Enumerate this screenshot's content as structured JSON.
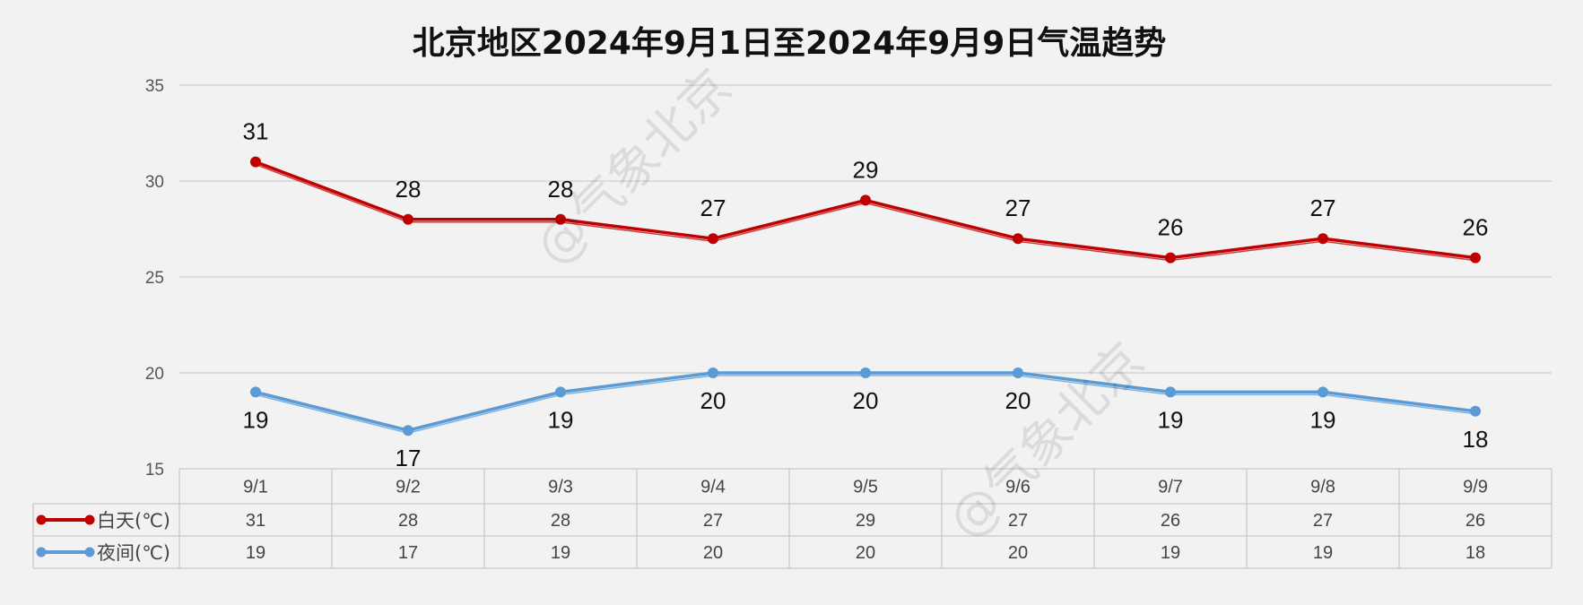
{
  "chart_data": {
    "type": "line",
    "title": "北京地区2024年9月1日至2024年9月9日气温趋势",
    "categories": [
      "9/1",
      "9/2",
      "9/3",
      "9/4",
      "9/5",
      "9/6",
      "9/7",
      "9/8",
      "9/9"
    ],
    "series": [
      {
        "name": "白天(℃)",
        "color": "#c00000",
        "values": [
          31,
          28,
          28,
          27,
          29,
          27,
          26,
          27,
          26
        ]
      },
      {
        "name": "夜间(℃)",
        "color": "#5b9bd5",
        "values": [
          19,
          17,
          19,
          20,
          20,
          20,
          19,
          19,
          18
        ]
      }
    ],
    "ylim": [
      15,
      35
    ],
    "yticks": [
      15,
      20,
      25,
      30,
      35
    ],
    "grid": true,
    "data_table": true,
    "data_labels": true
  },
  "watermark": "@气象北京"
}
